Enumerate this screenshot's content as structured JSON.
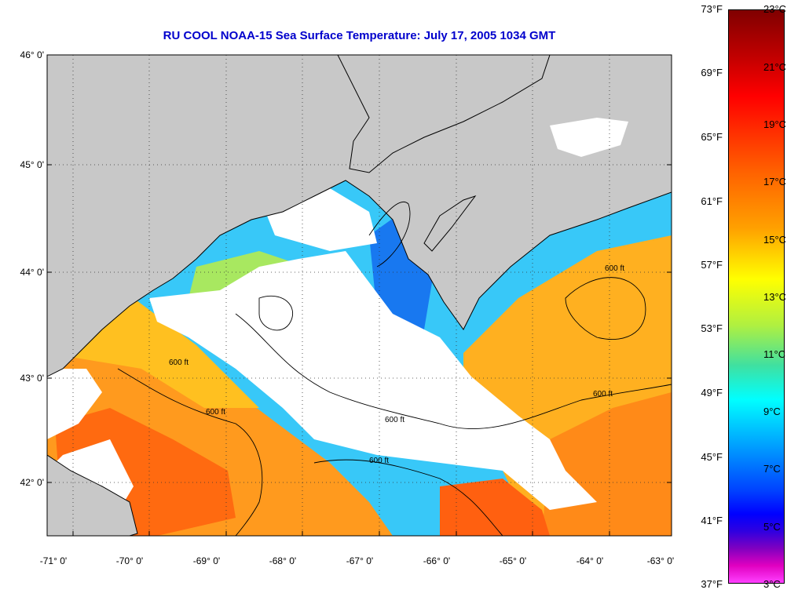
{
  "title": "RU COOL  NOAA-15  Sea Surface Temperature:  July 17, 2005 1034 GMT",
  "map": {
    "lat_labels": [
      "46° 0'",
      "45° 0'",
      "44° 0'",
      "43° 0'",
      "42° 0'"
    ],
    "lon_labels": [
      "-71° 0'",
      "-70° 0'",
      "-69° 0'",
      "-68° 0'",
      "-67° 0'",
      "-66° 0'",
      "-65° 0'",
      "-64° 0'",
      "-63° 0'"
    ],
    "contour_label": "600 ft",
    "colors": {
      "land": "#c8c8c8",
      "cloud": "#ffffff",
      "warm": "#ff9a1e",
      "mid": "#a8e860",
      "cool": "#38c8f8",
      "cold": "#1878f0"
    }
  },
  "colorbar": {
    "fahrenheit": [
      "73°F",
      "69°F",
      "65°F",
      "61°F",
      "57°F",
      "53°F",
      "49°F",
      "45°F",
      "41°F",
      "37°F"
    ],
    "celsius": [
      "23°C",
      "21°C",
      "19°C",
      "17°C",
      "15°C",
      "13°C",
      "11°C",
      "9°C",
      "7°C",
      "5°C",
      "3°C"
    ]
  }
}
